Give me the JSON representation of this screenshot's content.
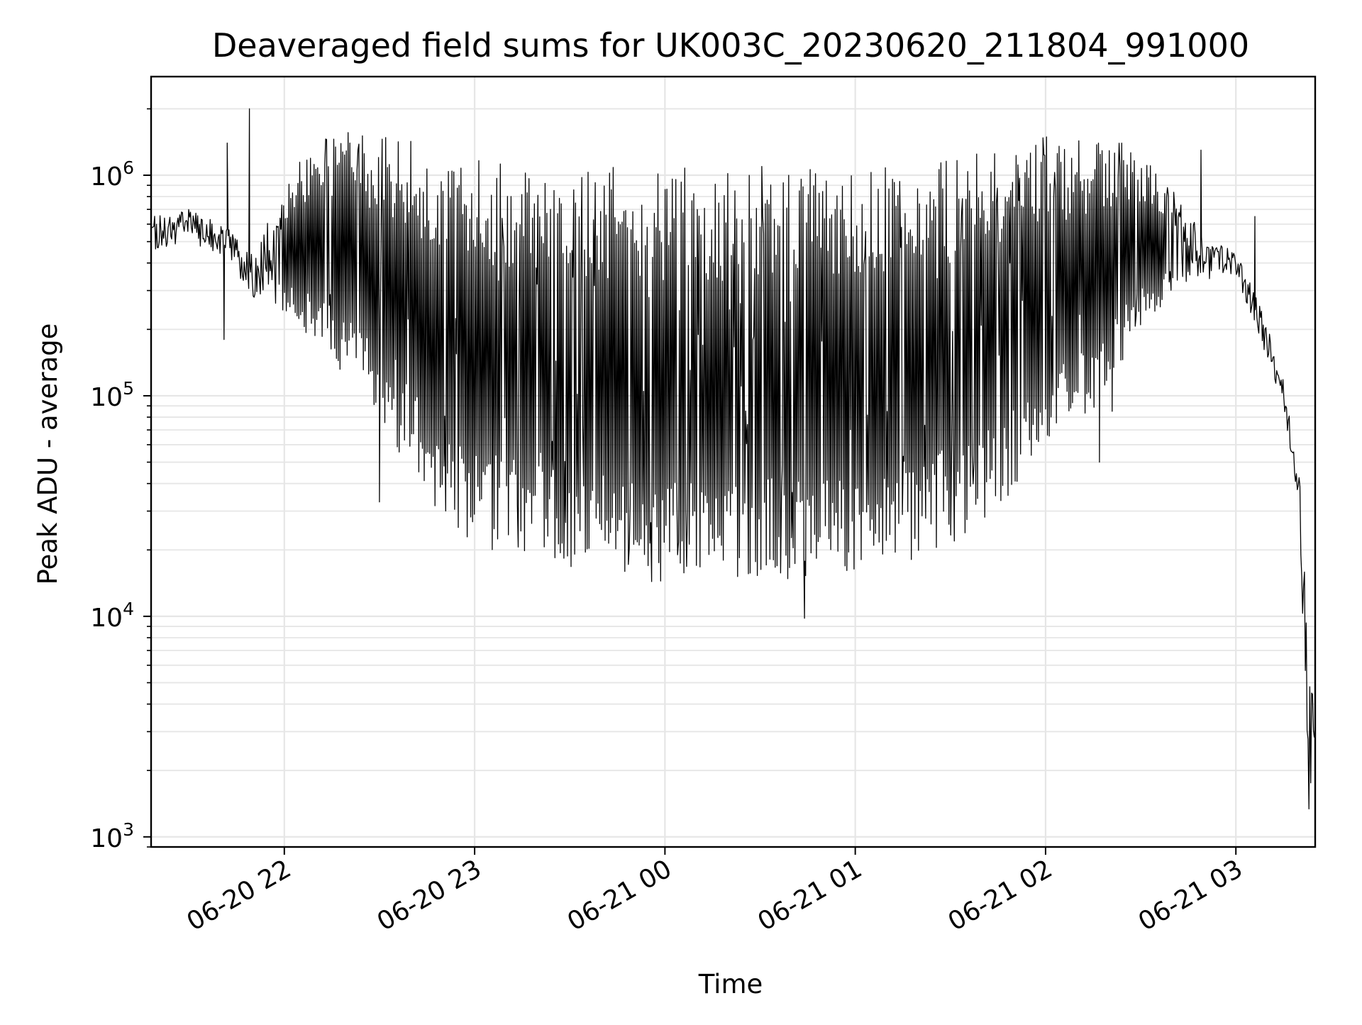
{
  "chart_data": {
    "type": "line",
    "title": "Deaveraged field sums for UK003C_20230620_211804_991000",
    "xlabel": "Time",
    "ylabel": "Peak ADU - average",
    "y_scale": "log",
    "ylim": [
      900,
      2800000
    ],
    "xlim": [
      "2023-06-20 21:18",
      "2023-06-21 03:25"
    ],
    "grid": true,
    "line_color": "#000000",
    "grid_color": "#e6e6e6",
    "x_ticks": [
      {
        "value": "2023-06-20 22:00",
        "label": "06-20 22"
      },
      {
        "value": "2023-06-20 23:00",
        "label": "06-20 23"
      },
      {
        "value": "2023-06-21 00:00",
        "label": "06-21 00"
      },
      {
        "value": "2023-06-21 01:00",
        "label": "06-21 01"
      },
      {
        "value": "2023-06-21 02:00",
        "label": "06-21 02"
      },
      {
        "value": "2023-06-21 03:00",
        "label": "06-21 03"
      }
    ],
    "y_ticks": [
      {
        "value": 1000,
        "base": "10",
        "exp": "3"
      },
      {
        "value": 10000,
        "base": "10",
        "exp": "4"
      },
      {
        "value": 100000,
        "base": "10",
        "exp": "5"
      },
      {
        "value": 1000000,
        "base": "10",
        "exp": "6"
      }
    ],
    "series": [
      {
        "upper_envelope": [
          [
            "2023-06-20 21:18",
            650000
          ],
          [
            "2023-06-20 21:30",
            700000
          ],
          [
            "2023-06-20 21:42",
            580000
          ],
          [
            "2023-06-20 21:50",
            450000
          ],
          [
            "2023-06-20 22:00",
            900000
          ],
          [
            "2023-06-20 22:10",
            1500000
          ],
          [
            "2023-06-20 22:25",
            1600000
          ],
          [
            "2023-06-20 22:40",
            1450000
          ],
          [
            "2023-06-20 23:00",
            1200000
          ],
          [
            "2023-06-20 23:30",
            1100000
          ],
          [
            "2023-06-21 00:00",
            1100000
          ],
          [
            "2023-06-21 00:30",
            1100000
          ],
          [
            "2023-06-21 01:00",
            1150000
          ],
          [
            "2023-06-21 01:30",
            1250000
          ],
          [
            "2023-06-21 02:00",
            1500000
          ],
          [
            "2023-06-21 02:25",
            1400000
          ],
          [
            "2023-06-21 02:40",
            900000
          ],
          [
            "2023-06-21 02:50",
            520000
          ],
          [
            "2023-06-21 03:00",
            450000
          ],
          [
            "2023-06-21 03:08",
            250000
          ],
          [
            "2023-06-21 03:15",
            120000
          ],
          [
            "2023-06-21 03:20",
            60000
          ],
          [
            "2023-06-21 03:23",
            8000
          ],
          [
            "2023-06-21 03:25",
            3400
          ]
        ],
        "lower_envelope": [
          [
            "2023-06-20 21:18",
            450000
          ],
          [
            "2023-06-20 21:30",
            500000
          ],
          [
            "2023-06-20 21:42",
            420000
          ],
          [
            "2023-06-20 21:50",
            280000
          ],
          [
            "2023-06-20 22:00",
            230000
          ],
          [
            "2023-06-20 22:10",
            170000
          ],
          [
            "2023-06-20 22:20",
            120000
          ],
          [
            "2023-06-20 22:30",
            75000
          ],
          [
            "2023-06-20 22:40",
            45000
          ],
          [
            "2023-06-20 22:50",
            27000
          ],
          [
            "2023-06-20 23:00",
            21000
          ],
          [
            "2023-06-20 23:30",
            16000
          ],
          [
            "2023-06-21 00:00",
            14000
          ],
          [
            "2023-06-21 00:30",
            14500
          ],
          [
            "2023-06-21 01:00",
            15500
          ],
          [
            "2023-06-21 01:30",
            20000
          ],
          [
            "2023-06-21 01:45",
            28000
          ],
          [
            "2023-06-21 02:00",
            55000
          ],
          [
            "2023-06-21 02:15",
            85000
          ],
          [
            "2023-06-21 02:30",
            200000
          ],
          [
            "2023-06-21 02:45",
            320000
          ],
          [
            "2023-06-21 03:00",
            350000
          ],
          [
            "2023-06-21 03:08",
            170000
          ],
          [
            "2023-06-21 03:15",
            90000
          ],
          [
            "2023-06-21 03:20",
            30000
          ],
          [
            "2023-06-21 03:23",
            1300
          ],
          [
            "2023-06-21 03:25",
            2500
          ]
        ],
        "spikes": [
          [
            "2023-06-20 21:42",
            1400000
          ],
          [
            "2023-06-20 21:49",
            2000000
          ],
          [
            "2023-06-20 21:41",
            180000
          ],
          [
            "2023-06-20 22:30",
            33000
          ],
          [
            "2023-06-21 00:44",
            9800
          ],
          [
            "2023-06-21 02:49",
            1300000
          ],
          [
            "2023-06-21 03:06",
            650000
          ],
          [
            "2023-06-21 02:17",
            50000
          ],
          [
            "2023-06-21 02:21",
            85000
          ]
        ]
      }
    ]
  }
}
